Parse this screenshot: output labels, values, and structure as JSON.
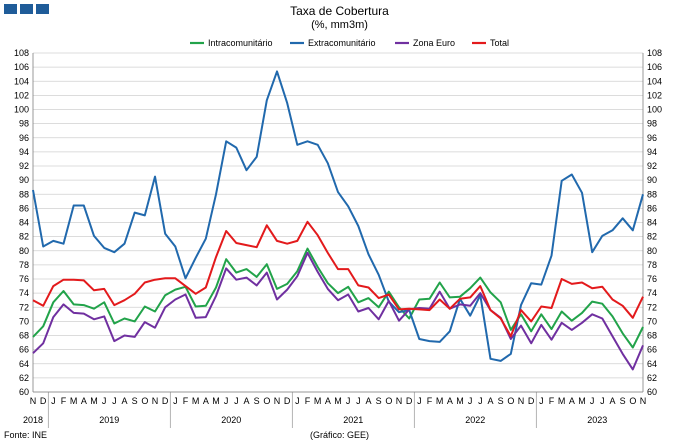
{
  "header": {
    "title": "Taxa de Cobertura",
    "subtitle": "(%, mm3m)"
  },
  "footer": {
    "source": "Fonte: INE",
    "credit": "(Gráfico: GEE)"
  },
  "chart_data": {
    "type": "line",
    "title": "Taxa de Cobertura",
    "subtitle": "(%, mm3m)",
    "ylim": [
      60,
      108
    ],
    "y_ticks": [
      60,
      62,
      64,
      66,
      68,
      70,
      72,
      74,
      76,
      78,
      80,
      82,
      84,
      86,
      88,
      90,
      92,
      94,
      96,
      98,
      100,
      102,
      104,
      106,
      108
    ],
    "grid": true,
    "legend_position": "top",
    "x": [
      "2018-11",
      "2018-12",
      "2019-01",
      "2019-02",
      "2019-03",
      "2019-04",
      "2019-05",
      "2019-06",
      "2019-07",
      "2019-08",
      "2019-09",
      "2019-10",
      "2019-11",
      "2019-12",
      "2020-01",
      "2020-02",
      "2020-03",
      "2020-04",
      "2020-05",
      "2020-06",
      "2020-07",
      "2020-08",
      "2020-09",
      "2020-10",
      "2020-11",
      "2020-12",
      "2021-01",
      "2021-02",
      "2021-03",
      "2021-04",
      "2021-05",
      "2021-06",
      "2021-07",
      "2021-08",
      "2021-09",
      "2021-10",
      "2021-11",
      "2021-12",
      "2022-01",
      "2022-02",
      "2022-03",
      "2022-04",
      "2022-05",
      "2022-06",
      "2022-07",
      "2022-08",
      "2022-09",
      "2022-10",
      "2022-11",
      "2022-12",
      "2023-01",
      "2023-02",
      "2023-03",
      "2023-04",
      "2023-05",
      "2023-06",
      "2023-07",
      "2023-08",
      "2023-09",
      "2023-10",
      "2023-11"
    ],
    "month_labels": [
      "N",
      "D",
      "J",
      "F",
      "M",
      "A",
      "M",
      "J",
      "J",
      "A",
      "S",
      "O",
      "N",
      "D",
      "J",
      "F",
      "M",
      "A",
      "M",
      "J",
      "J",
      "A",
      "S",
      "O",
      "N",
      "D",
      "J",
      "F",
      "M",
      "A",
      "M",
      "J",
      "J",
      "A",
      "S",
      "O",
      "N",
      "D",
      "J",
      "F",
      "M",
      "A",
      "M",
      "J",
      "J",
      "A",
      "S",
      "O",
      "N",
      "D",
      "J",
      "F",
      "M",
      "A",
      "M",
      "J",
      "J",
      "A",
      "S",
      "O",
      "N"
    ],
    "year_labels": [
      {
        "label": "2018",
        "index": 0
      },
      {
        "label": "2019",
        "index": 7.5
      },
      {
        "label": "2020",
        "index": 19.5
      },
      {
        "label": "2021",
        "index": 31.5
      },
      {
        "label": "2022",
        "index": 43.5
      },
      {
        "label": "2023",
        "index": 55.5
      }
    ],
    "series": [
      {
        "name": "Intracomunitário",
        "color": "#22a34a",
        "values": [
          67.8,
          69.3,
          72.7,
          74.3,
          72.4,
          72.3,
          71.8,
          72.7,
          69.7,
          70.4,
          70.0,
          72.1,
          71.4,
          73.7,
          74.5,
          74.9,
          72.1,
          72.2,
          74.8,
          78.8,
          76.9,
          77.4,
          76.3,
          78.1,
          74.6,
          75.3,
          77.1,
          80.3,
          77.7,
          75.4,
          74.0,
          74.9,
          72.7,
          73.3,
          72.0,
          74.2,
          72.0,
          70.4,
          73.1,
          73.2,
          75.5,
          73.4,
          73.5,
          74.7,
          76.2,
          74.1,
          72.7,
          68.8,
          71.0,
          68.6,
          71.0,
          68.9,
          71.4,
          70.1,
          71.2,
          72.8,
          72.5,
          70.7,
          68.3,
          66.3,
          69.2
        ]
      },
      {
        "name": "Extracomunitário",
        "color": "#2169ad",
        "values": [
          88.6,
          80.6,
          81.4,
          81.0,
          86.4,
          86.4,
          82.1,
          80.4,
          79.8,
          81.0,
          85.4,
          85.0,
          90.5,
          82.4,
          80.6,
          76.1,
          79.0,
          81.7,
          88.0,
          95.5,
          94.6,
          91.4,
          93.3,
          101.3,
          105.4,
          100.9,
          95.0,
          95.5,
          95.0,
          92.4,
          88.3,
          86.3,
          83.5,
          79.5,
          76.6,
          72.8,
          71.3,
          71.6,
          67.5,
          67.2,
          67.1,
          68.6,
          73.2,
          70.8,
          73.7,
          64.7,
          64.4,
          65.4,
          72.3,
          75.4,
          75.2,
          79.3,
          89.9,
          90.8,
          88.2,
          79.8,
          82.1,
          82.9,
          84.6,
          82.9,
          88.0
        ]
      },
      {
        "name": "Zona Euro",
        "color": "#7030a0",
        "values": [
          65.5,
          66.9,
          70.6,
          72.4,
          71.2,
          71.1,
          70.3,
          70.7,
          67.2,
          68.0,
          67.8,
          69.9,
          69.1,
          72.0,
          73.1,
          73.8,
          70.5,
          70.6,
          73.6,
          77.5,
          75.9,
          76.2,
          75.1,
          76.9,
          73.1,
          74.5,
          76.4,
          79.7,
          77.0,
          74.6,
          73.0,
          73.8,
          71.4,
          71.9,
          70.3,
          72.9,
          70.1,
          71.7,
          71.9,
          71.8,
          74.2,
          71.8,
          72.4,
          72.2,
          74.0,
          71.6,
          70.5,
          67.5,
          69.4,
          66.9,
          69.5,
          67.4,
          69.8,
          68.8,
          69.8,
          71.0,
          70.4,
          67.9,
          65.4,
          63.2,
          66.6
        ]
      },
      {
        "name": "Total",
        "color": "#e31a1c",
        "values": [
          73.0,
          72.2,
          75.0,
          75.9,
          75.9,
          75.8,
          74.4,
          74.6,
          72.3,
          73.0,
          73.9,
          75.5,
          75.9,
          76.1,
          76.1,
          75.0,
          73.9,
          74.8,
          79.1,
          82.8,
          81.1,
          80.8,
          80.5,
          83.6,
          81.4,
          81.0,
          81.4,
          84.1,
          82.2,
          79.7,
          77.4,
          77.4,
          75.1,
          74.8,
          73.3,
          73.8,
          71.7,
          71.8,
          71.7,
          71.6,
          73.1,
          71.8,
          73.2,
          73.4,
          75.0,
          71.6,
          70.4,
          67.9,
          71.6,
          70.0,
          72.1,
          71.9,
          76.0,
          75.3,
          75.5,
          74.7,
          74.9,
          73.1,
          72.2,
          70.5,
          73.5
        ]
      }
    ]
  }
}
